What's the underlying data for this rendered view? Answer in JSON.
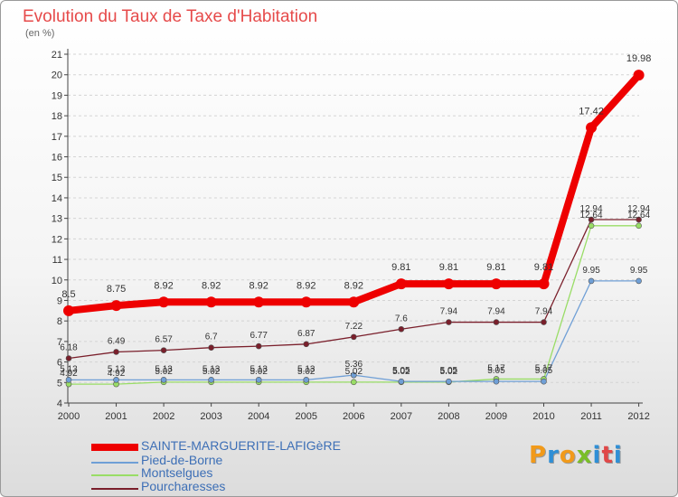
{
  "chart_data": {
    "type": "line",
    "title": "Evolution du Taux de Taxe d'Habitation",
    "ylabel": "(en %)",
    "xlabel": "",
    "ylim": [
      4,
      21
    ],
    "y_ticks": [
      4,
      5,
      6,
      7,
      8,
      9,
      10,
      11,
      12,
      13,
      14,
      15,
      16,
      17,
      18,
      19,
      20,
      21
    ],
    "categories": [
      "2000",
      "2001",
      "2002",
      "2003",
      "2004",
      "2005",
      "2006",
      "2007",
      "2008",
      "2009",
      "2010",
      "2011",
      "2012"
    ],
    "series": [
      {
        "name": "SAINTE-MARGUERITE-LAFIGèRE",
        "color": "#ee0000",
        "values": [
          8.5,
          8.75,
          8.92,
          8.92,
          8.92,
          8.92,
          8.92,
          9.81,
          9.81,
          9.81,
          9.81,
          17.42,
          19.98
        ]
      },
      {
        "name": "Pied-de-Borne",
        "color": "#6f9fd6",
        "values": [
          5.13,
          5.13,
          5.13,
          5.13,
          5.13,
          5.13,
          5.36,
          5.05,
          5.05,
          5.05,
          5.05,
          9.95,
          9.95
        ]
      },
      {
        "name": "Montselgues",
        "color": "#99dd66",
        "values": [
          4.92,
          4.92,
          5.02,
          5.02,
          5.02,
          5.02,
          5.02,
          5.02,
          5.02,
          5.17,
          5.17,
          12.64,
          12.64
        ]
      },
      {
        "name": "Pourcharesses",
        "color": "#7a1f2b",
        "values": [
          6.18,
          6.49,
          6.57,
          6.7,
          6.77,
          6.87,
          7.22,
          7.6,
          7.94,
          7.94,
          7.94,
          12.94,
          12.94
        ]
      }
    ]
  },
  "logo": {
    "letters": [
      "P",
      "r",
      "o",
      "x",
      "i",
      "t",
      "i"
    ],
    "colors": [
      "#f19a1a",
      "#2f8fd6",
      "#f19a1a",
      "#7abe28",
      "#2f8fd6",
      "#e04848",
      "#2f8fd6"
    ]
  }
}
